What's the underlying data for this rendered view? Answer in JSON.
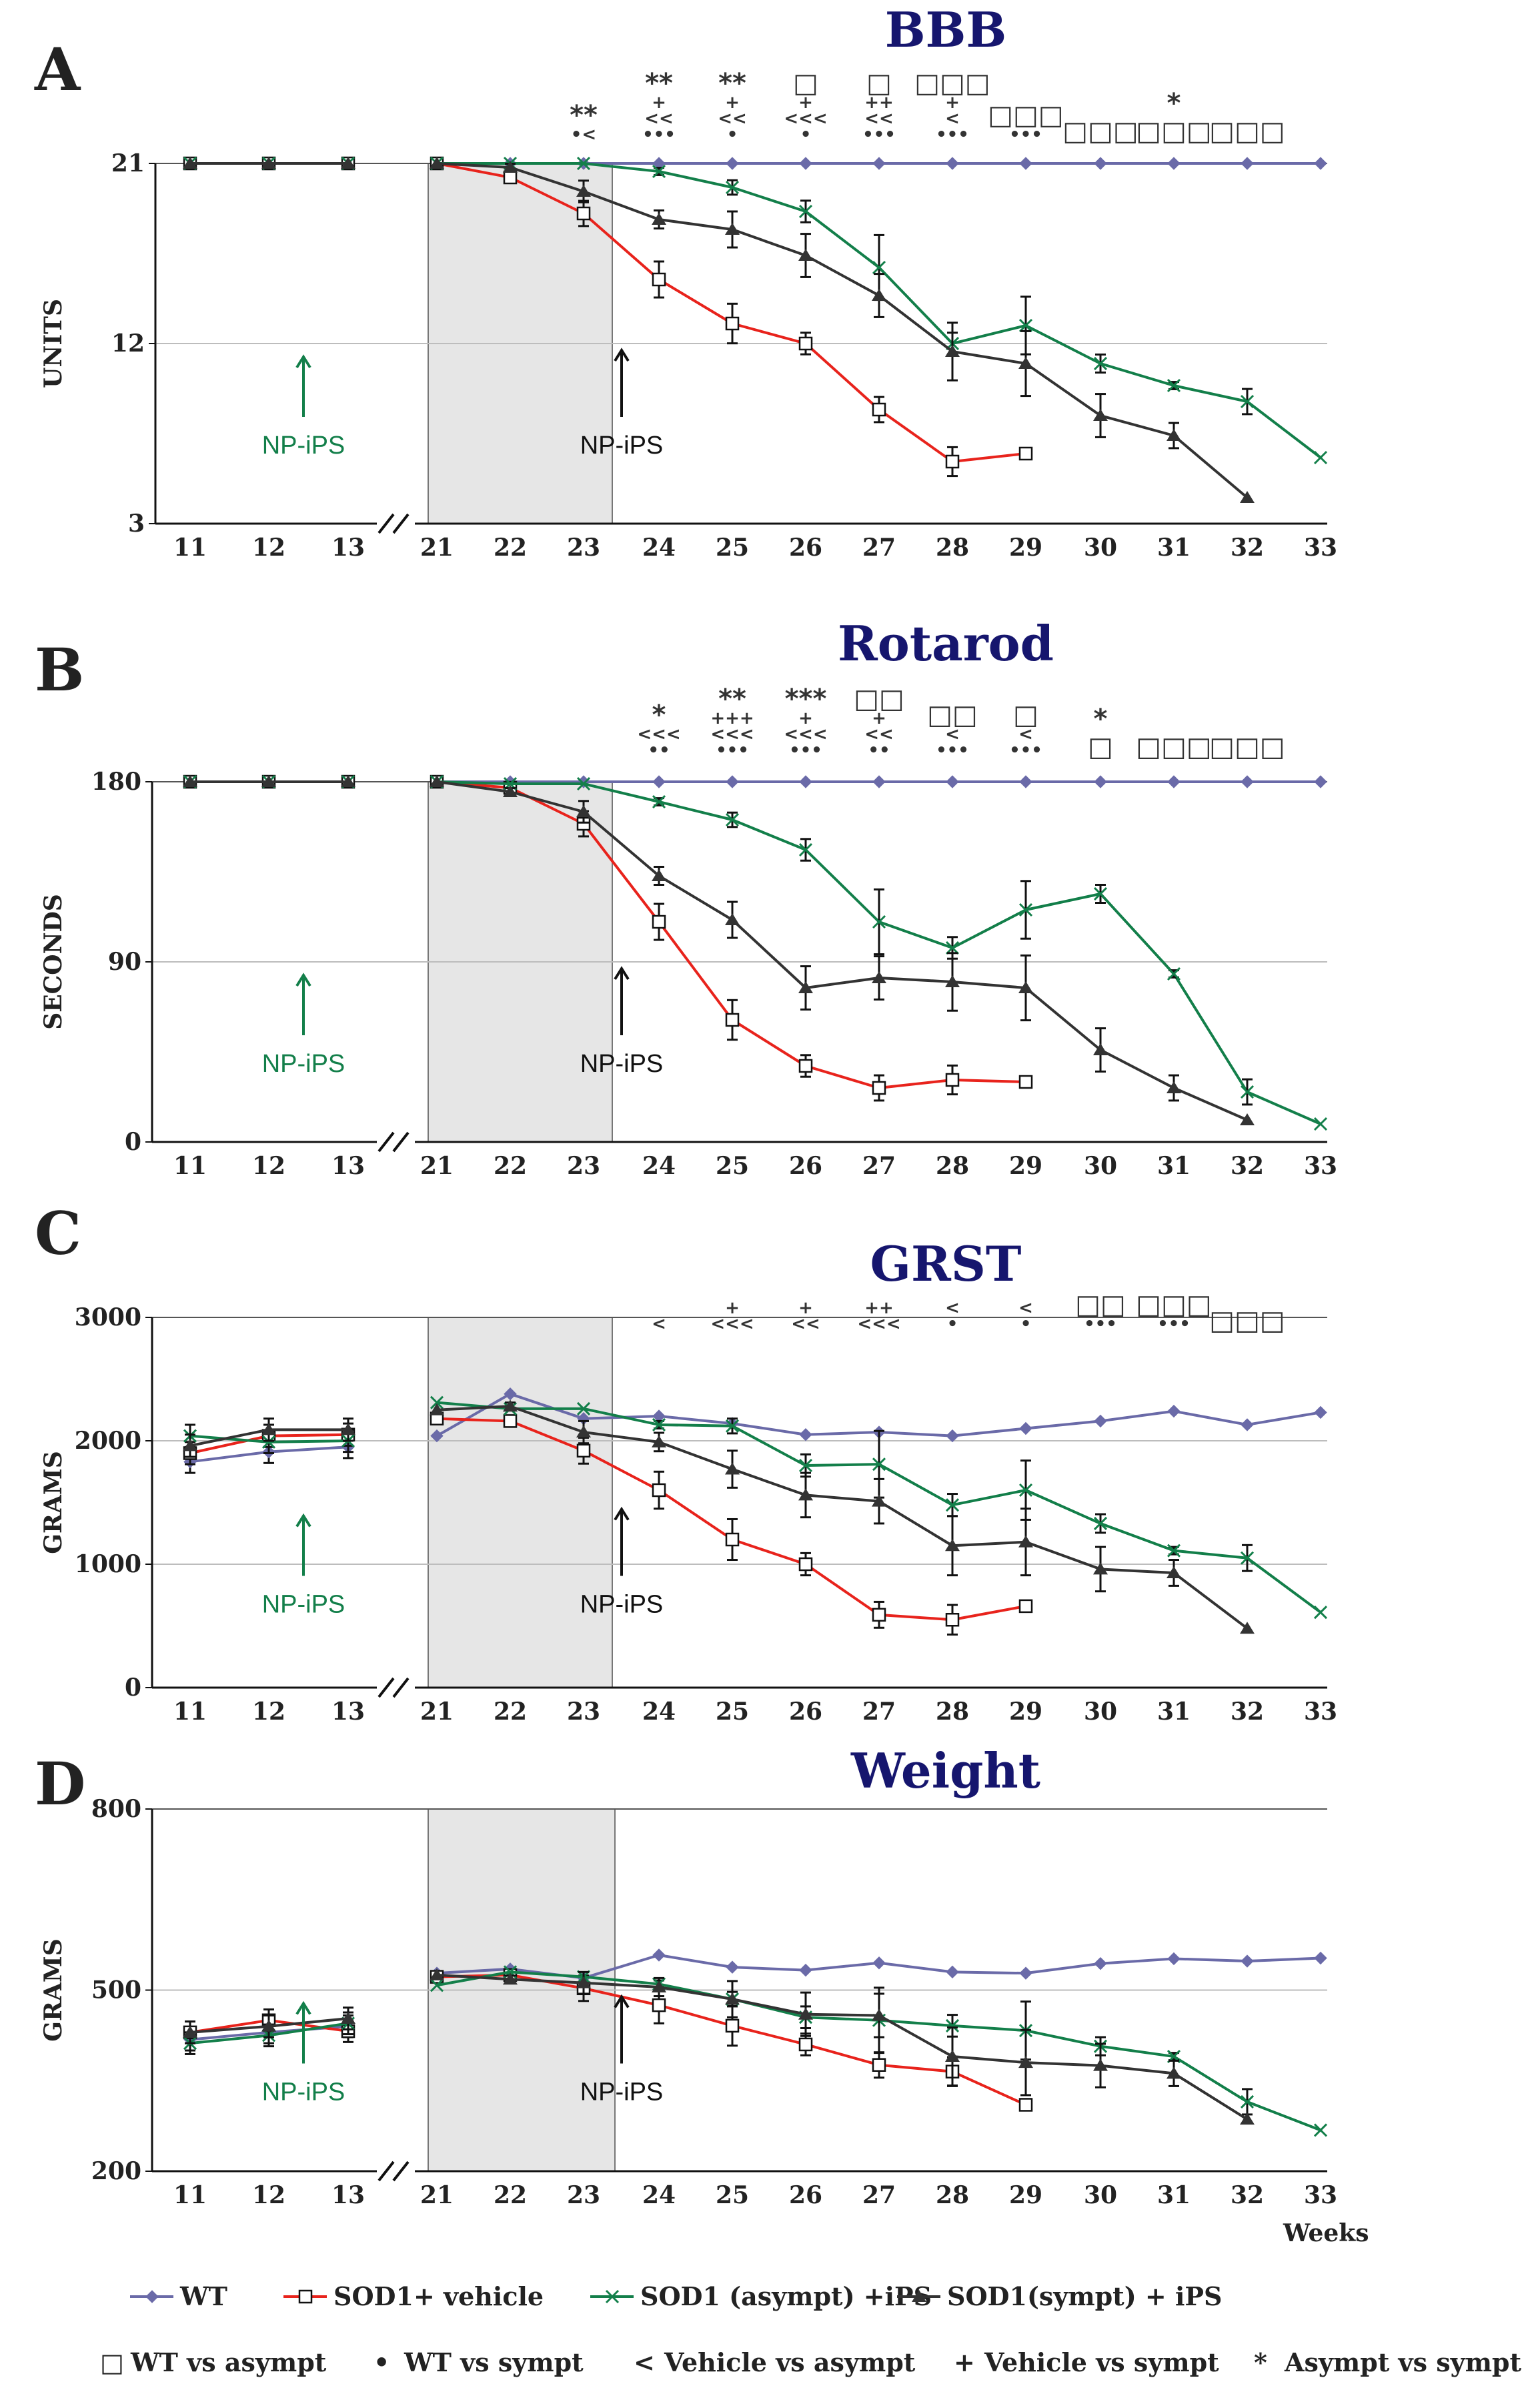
{
  "figure": {
    "x_weeks_left": [
      11,
      12,
      13
    ],
    "x_weeks_right": [
      21,
      22,
      23,
      24,
      25,
      26,
      27,
      28,
      29,
      30,
      31,
      32,
      33
    ],
    "x_axis_title": "Weeks",
    "colors": {
      "wt": "#6a6aa8",
      "vehicle": "#e8231c",
      "asympt": "#137f4a",
      "sympt": "#333333",
      "title": "#16166e",
      "np_left": "#137f4a",
      "np_right": "#111111"
    },
    "annotations": {
      "np_left_label": "NP-iPS",
      "np_right_label": "NP-iPS"
    }
  },
  "chart_data": [
    {
      "panel": "A",
      "title": "BBB",
      "type": "line",
      "ylabel": "UNITS",
      "ylim": [
        3,
        21
      ],
      "y_ticks": [
        "3",
        "12",
        "21"
      ],
      "series": [
        {
          "name": "WT",
          "left": [
            21,
            21,
            21
          ],
          "right": [
            21,
            21,
            21,
            21,
            21,
            21,
            21,
            21,
            21,
            21,
            21,
            21,
            21
          ]
        },
        {
          "name": "SOD1+ vehicle",
          "left": [
            21,
            21,
            21
          ],
          "right": [
            21,
            20.3,
            18.5,
            15.2,
            13,
            12,
            8.7,
            6.1,
            6.5,
            null,
            null,
            null,
            null
          ]
        },
        {
          "name": "SOD1 (asympt) +iPS",
          "left": [
            21,
            21,
            21
          ],
          "right": [
            21,
            21,
            21,
            20.6,
            19.8,
            18.6,
            15.8,
            12,
            12.9,
            11,
            9.9,
            9.1,
            6.3
          ]
        },
        {
          "name": "SOD1(sympt) + iPS",
          "left": [
            21,
            21,
            21
          ],
          "right": [
            21,
            20.8,
            19.6,
            18.2,
            17.7,
            16.4,
            14.4,
            11.6,
            11,
            8.4,
            7.4,
            4.3,
            null
          ]
        }
      ],
      "significance": [
        {
          "week": 23,
          "lines": [
            "**",
            "•<"
          ]
        },
        {
          "week": 24,
          "lines": [
            "**",
            "+",
            "<<",
            "•••"
          ]
        },
        {
          "week": 25,
          "lines": [
            "**",
            "+",
            "<<",
            "•"
          ]
        },
        {
          "week": 26,
          "lines": [
            "□",
            "+",
            "<<<",
            "•"
          ]
        },
        {
          "week": 27,
          "lines": [
            "□",
            "++",
            "<<",
            "•••"
          ]
        },
        {
          "week": 28,
          "lines": [
            "□□□",
            "+",
            "<",
            "•••"
          ]
        },
        {
          "week": 29,
          "lines": [
            "□□□",
            "•••"
          ]
        },
        {
          "week": 30,
          "lines": [
            "□□□"
          ]
        },
        {
          "week": 31,
          "lines": [
            "*",
            "□□□"
          ]
        },
        {
          "week": 32,
          "lines": [
            "□□□"
          ]
        }
      ]
    },
    {
      "panel": "B",
      "title": "Rotarod",
      "type": "line",
      "ylabel": "SECONDS",
      "ylim": [
        0,
        180
      ],
      "y_ticks": [
        "0",
        "90",
        "180"
      ],
      "series": [
        {
          "name": "WT",
          "left": [
            180,
            180,
            180
          ],
          "right": [
            180,
            180,
            180,
            180,
            180,
            180,
            180,
            180,
            180,
            180,
            180,
            180,
            180
          ]
        },
        {
          "name": "SOD1+ vehicle",
          "left": [
            180,
            180,
            180
          ],
          "right": [
            180,
            177,
            159,
            110,
            61,
            38,
            27,
            31,
            30,
            null,
            null,
            null,
            null
          ]
        },
        {
          "name": "SOD1 (asympt) +iPS",
          "left": [
            180,
            180,
            180
          ],
          "right": [
            180,
            179,
            179,
            170,
            161,
            146,
            110,
            97,
            116,
            124,
            84,
            25,
            9
          ]
        },
        {
          "name": "SOD1(sympt) + iPS",
          "left": [
            180,
            180,
            180
          ],
          "right": [
            180,
            175,
            165,
            133,
            111,
            77,
            82,
            80,
            77,
            46,
            27,
            11,
            null
          ]
        }
      ],
      "significance": [
        {
          "week": 24,
          "lines": [
            "*",
            "<<<",
            "••"
          ]
        },
        {
          "week": 25,
          "lines": [
            "**",
            "+++",
            "<<<",
            "•••"
          ]
        },
        {
          "week": 26,
          "lines": [
            "***",
            "+",
            "<<<",
            "•••"
          ]
        },
        {
          "week": 27,
          "lines": [
            "□□",
            "+",
            "<<",
            "••"
          ]
        },
        {
          "week": 28,
          "lines": [
            "□□",
            "<",
            "•••"
          ]
        },
        {
          "week": 29,
          "lines": [
            "□",
            "<",
            "•••"
          ]
        },
        {
          "week": 30,
          "lines": [
            "*",
            "□"
          ]
        },
        {
          "week": 31,
          "lines": [
            "□□□"
          ]
        },
        {
          "week": 32,
          "lines": [
            "□□□"
          ]
        }
      ]
    },
    {
      "panel": "C",
      "title": "GRST",
      "type": "line",
      "ylabel": "GRAMS",
      "ylim": [
        0,
        3000
      ],
      "y_ticks": [
        "0",
        "1000",
        "2000",
        "3000"
      ],
      "series": [
        {
          "name": "WT",
          "left": [
            1830,
            1910,
            1950
          ],
          "right": [
            2040,
            2380,
            2180,
            2200,
            2140,
            2050,
            2070,
            2040,
            2100,
            2160,
            2240,
            2130,
            2230
          ]
        },
        {
          "name": "SOD1+ vehicle",
          "left": [
            1900,
            2040,
            2050
          ],
          "right": [
            2180,
            2160,
            1920,
            1600,
            1200,
            1000,
            590,
            550,
            660,
            null,
            null,
            null,
            null
          ]
        },
        {
          "name": "SOD1 (asympt) +iPS",
          "left": [
            2040,
            1990,
            2000
          ],
          "right": [
            2310,
            2260,
            2260,
            2130,
            2120,
            1800,
            1810,
            1480,
            1600,
            1330,
            1110,
            1050,
            610
          ]
        },
        {
          "name": "SOD1(sympt) + iPS",
          "left": [
            1960,
            2090,
            2090
          ],
          "right": [
            2250,
            2280,
            2070,
            1990,
            1770,
            1560,
            1510,
            1150,
            1180,
            960,
            930,
            480,
            null
          ]
        }
      ],
      "significance": [
        {
          "week": 24,
          "lines": [
            "<"
          ]
        },
        {
          "week": 25,
          "lines": [
            "+",
            "<<<"
          ]
        },
        {
          "week": 26,
          "lines": [
            "+",
            "<<"
          ]
        },
        {
          "week": 27,
          "lines": [
            "++",
            "<<<"
          ]
        },
        {
          "week": 28,
          "lines": [
            "<",
            "•"
          ]
        },
        {
          "week": 29,
          "lines": [
            "<",
            "•"
          ]
        },
        {
          "week": 30,
          "lines": [
            "□□",
            "•••"
          ]
        },
        {
          "week": 31,
          "lines": [
            "□□□",
            "•••"
          ]
        },
        {
          "week": 32,
          "lines": [
            "□□□"
          ]
        }
      ]
    },
    {
      "panel": "D",
      "title": "Weight",
      "type": "line",
      "ylabel": "GRAMS",
      "ylim": [
        200,
        800
      ],
      "y_ticks": [
        "200",
        "500",
        "800"
      ],
      "series": [
        {
          "name": "WT",
          "left": [
            418,
            430,
            440
          ],
          "right": [
            528,
            535,
            520,
            558,
            538,
            533,
            545,
            530,
            528,
            544,
            552,
            548,
            553
          ]
        },
        {
          "name": "SOD1+ vehicle",
          "left": [
            430,
            450,
            432
          ],
          "right": [
            522,
            525,
            503,
            475,
            441,
            410,
            376,
            365,
            310,
            null,
            null,
            null,
            null
          ]
        },
        {
          "name": "SOD1 (asympt) +iPS",
          "left": [
            412,
            425,
            445
          ],
          "right": [
            508,
            530,
            522,
            510,
            485,
            455,
            450,
            441,
            433,
            407,
            390,
            315,
            268
          ]
        },
        {
          "name": "SOD1(sympt) + iPS",
          "left": [
            430,
            440,
            453
          ],
          "right": [
            525,
            518,
            512,
            505,
            485,
            460,
            458,
            390,
            380,
            375,
            362,
            286,
            null
          ]
        }
      ],
      "significance": []
    }
  ],
  "legend": {
    "series": [
      {
        "key": "wt",
        "label": "WT",
        "marker": "diamond"
      },
      {
        "key": "vehicle",
        "label": "SOD1+ vehicle",
        "marker": "square"
      },
      {
        "key": "asympt",
        "label": "SOD1 (asympt) +iPS",
        "marker": "x"
      },
      {
        "key": "sympt",
        "label": "SOD1(sympt) + iPS",
        "marker": "triangle"
      }
    ],
    "symbols": [
      {
        "symbol": "□",
        "label": "WT vs asympt"
      },
      {
        "symbol": "•",
        "label": "WT vs sympt"
      },
      {
        "symbol": "<",
        "label": "Vehicle vs asympt"
      },
      {
        "symbol": "+",
        "label": "Vehicle vs sympt"
      },
      {
        "symbol": "*",
        "label": "Asympt vs sympt"
      }
    ]
  }
}
